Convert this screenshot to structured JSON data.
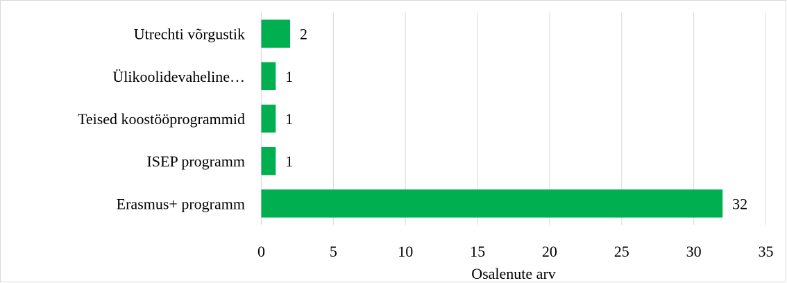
{
  "chart_data": {
    "type": "bar",
    "orientation": "horizontal",
    "title": "",
    "categories": [
      "Utrechti võrgustik",
      "Ülikoolidevaheline…",
      "Teised koostööprogrammid",
      "ISEP programm",
      "Erasmus+ programm"
    ],
    "values": [
      2,
      1,
      1,
      1,
      32
    ],
    "data_labels": [
      "2",
      "1",
      "1",
      "1",
      "32"
    ],
    "xlabel": "Osalenute arv",
    "ylabel": "",
    "xlim": [
      0,
      35
    ],
    "x_ticks": [
      0,
      5,
      10,
      15,
      20,
      25,
      30,
      35
    ],
    "x_tick_labels": [
      "0",
      "5",
      "10",
      "15",
      "20",
      "25",
      "30",
      "35"
    ],
    "grid": "vertical",
    "legend": "none",
    "bar_color": "#00b050",
    "grid_color": "#d9d9d9"
  }
}
